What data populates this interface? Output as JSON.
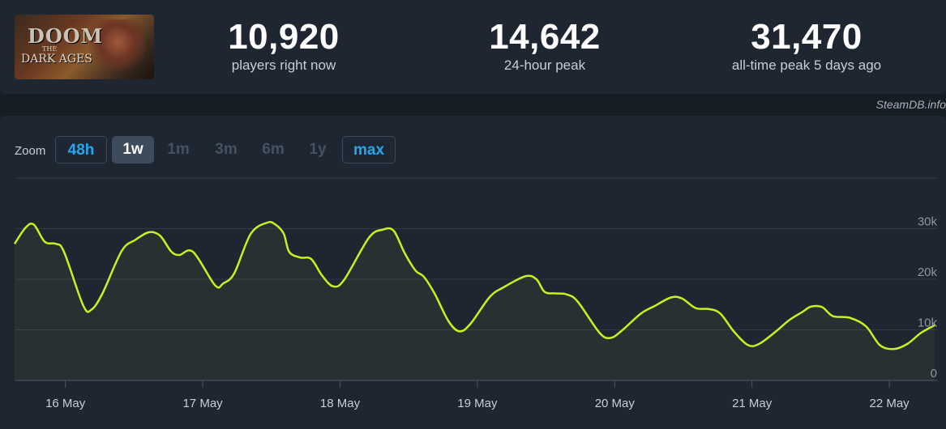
{
  "game": {
    "cover_alt": "DOOM THE DARK AGES",
    "logo_top": "DOOM",
    "logo_mid": "THE",
    "logo_bottom": "DARK AGES"
  },
  "stats": [
    {
      "value": "10,920",
      "label": "players right now"
    },
    {
      "value": "14,642",
      "label": "24-hour peak"
    },
    {
      "value": "31,470",
      "label": "all-time peak 5 days ago"
    }
  ],
  "watermark": "SteamDB.info",
  "zoom": {
    "label": "Zoom",
    "options": [
      "48h",
      "1w",
      "1m",
      "3m",
      "6m",
      "1y",
      "max"
    ],
    "active": "1w"
  },
  "colors": {
    "line": "#c6f21d",
    "fill": "rgba(198,242,29,0.06)",
    "accent": "#22a8f0"
  },
  "chart_data": {
    "type": "line",
    "series": [
      {
        "values": [
          [
            0,
            27000
          ],
          [
            0.08,
            30200
          ],
          [
            0.14,
            30800
          ],
          [
            0.22,
            27400
          ],
          [
            0.3,
            27000
          ],
          [
            0.36,
            25400
          ],
          [
            0.5,
            14800
          ],
          [
            0.56,
            14000
          ],
          [
            0.64,
            17200
          ],
          [
            0.78,
            25600
          ],
          [
            0.88,
            27800
          ],
          [
            0.98,
            29300
          ],
          [
            1.06,
            28600
          ],
          [
            1.14,
            25500
          ],
          [
            1.2,
            24800
          ],
          [
            1.3,
            25400
          ],
          [
            1.46,
            18800
          ],
          [
            1.52,
            19200
          ],
          [
            1.6,
            21200
          ],
          [
            1.72,
            29000
          ],
          [
            1.84,
            31200
          ],
          [
            1.9,
            30800
          ],
          [
            1.96,
            29000
          ],
          [
            2.0,
            25400
          ],
          [
            2.08,
            24300
          ],
          [
            2.16,
            24000
          ],
          [
            2.24,
            20700
          ],
          [
            2.32,
            18600
          ],
          [
            2.4,
            19900
          ],
          [
            2.58,
            28200
          ],
          [
            2.68,
            29800
          ],
          [
            2.76,
            29600
          ],
          [
            2.84,
            25200
          ],
          [
            2.92,
            21700
          ],
          [
            2.98,
            20500
          ],
          [
            3.06,
            17100
          ],
          [
            3.16,
            11700
          ],
          [
            3.24,
            9700
          ],
          [
            3.32,
            11200
          ],
          [
            3.46,
            16500
          ],
          [
            3.56,
            18400
          ],
          [
            3.72,
            20600
          ],
          [
            3.8,
            20000
          ],
          [
            3.86,
            17500
          ],
          [
            3.94,
            17200
          ],
          [
            4.02,
            17000
          ],
          [
            4.1,
            15600
          ],
          [
            4.26,
            9400
          ],
          [
            4.34,
            8400
          ],
          [
            4.42,
            9800
          ],
          [
            4.56,
            13200
          ],
          [
            4.66,
            14700
          ],
          [
            4.78,
            16400
          ],
          [
            4.86,
            16200
          ],
          [
            4.96,
            14300
          ],
          [
            5.06,
            14100
          ],
          [
            5.14,
            13200
          ],
          [
            5.24,
            9600
          ],
          [
            5.34,
            7000
          ],
          [
            5.42,
            7200
          ],
          [
            5.54,
            9600
          ],
          [
            5.64,
            11900
          ],
          [
            5.74,
            13600
          ],
          [
            5.8,
            14600
          ],
          [
            5.88,
            14500
          ],
          [
            5.96,
            12700
          ],
          [
            6.08,
            12400
          ],
          [
            6.2,
            10700
          ],
          [
            6.3,
            7000
          ],
          [
            6.4,
            6200
          ],
          [
            6.5,
            7200
          ],
          [
            6.6,
            9400
          ],
          [
            6.7,
            10920
          ]
        ]
      }
    ],
    "x_ticks": [
      "16 May",
      "17 May",
      "18 May",
      "19 May",
      "20 May",
      "21 May",
      "22 May"
    ],
    "y_ticks": [
      "0",
      "10k",
      "20k",
      "30k"
    ],
    "y_values": [
      0,
      10000,
      20000,
      30000
    ],
    "xlim": [
      0,
      6.7
    ],
    "ylim": [
      0,
      40000
    ],
    "grid": true
  }
}
